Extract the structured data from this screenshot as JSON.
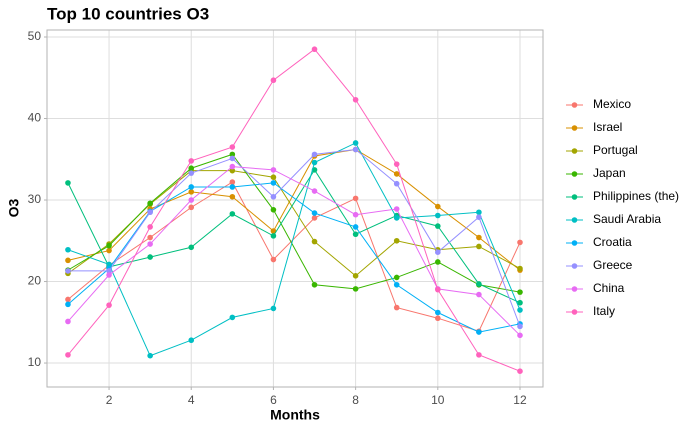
{
  "chart_data": {
    "type": "line",
    "title": "Top 10 countries O3",
    "x_label": "Months",
    "y_label": "O3",
    "x": [
      1,
      2,
      3,
      4,
      5,
      6,
      7,
      8,
      9,
      10,
      11,
      12
    ],
    "xlim": [
      0.49,
      12.56
    ],
    "xticks": [
      2,
      4,
      6,
      8,
      10,
      12
    ],
    "ylim": [
      7.06,
      50.86
    ],
    "yticks": [
      10,
      20,
      30,
      40,
      50
    ],
    "grid": true,
    "legend": "right",
    "series": [
      {
        "name": "Mexico",
        "color": "#F8766D",
        "values": [
          17.8,
          22,
          25.4,
          29.1,
          32.2,
          22.7,
          27.8,
          30.2,
          16.8,
          15.5,
          13.9,
          24.8
        ]
      },
      {
        "name": "Israel",
        "color": "#D89000",
        "values": [
          22.6,
          23.8,
          28.9,
          31,
          30.4,
          26.2,
          35.4,
          36.2,
          33.2,
          29.2,
          25.4,
          21.4
        ]
      },
      {
        "name": "Portugal",
        "color": "#A3A500",
        "values": [
          21,
          24.6,
          29.5,
          33.6,
          33.6,
          32.8,
          24.9,
          20.7,
          25,
          23.9,
          24.3,
          21.6
        ]
      },
      {
        "name": "Japan",
        "color": "#39B600",
        "values": [
          21.4,
          24.4,
          29.6,
          33.9,
          35.6,
          28.8,
          19.6,
          19.1,
          20.5,
          22.4,
          19.6,
          18.7
        ]
      },
      {
        "name": "Philippines (the)",
        "color": "#00BF7D",
        "values": [
          32.1,
          21.8,
          23,
          24.2,
          28.3,
          25.6,
          33.7,
          25.8,
          28.1,
          26.8,
          19.7,
          17.4
        ]
      },
      {
        "name": "Saudi Arabia",
        "color": "#00BFC4",
        "values": [
          23.9,
          22.1,
          10.9,
          12.8,
          15.6,
          16.7,
          34.6,
          37,
          27.8,
          28.1,
          28.5,
          16.5
        ]
      },
      {
        "name": "Croatia",
        "color": "#00B0F6",
        "values": [
          17.2,
          21.6,
          28.6,
          31.6,
          31.6,
          32.1,
          28.4,
          26.7,
          19.6,
          16.2,
          13.8,
          14.8
        ]
      },
      {
        "name": "Greece",
        "color": "#9590FF",
        "values": [
          21.3,
          21.3,
          28.5,
          33.3,
          35.1,
          30.4,
          35.6,
          36.2,
          32,
          23.6,
          27.9,
          14.5
        ]
      },
      {
        "name": "China",
        "color": "#E76BF3",
        "values": [
          15.1,
          20.8,
          24.6,
          30,
          34.1,
          33.7,
          31.1,
          28.2,
          28.9,
          19.1,
          18.4,
          13.4
        ]
      },
      {
        "name": "Italy",
        "color": "#FF62BC",
        "values": [
          11,
          17.1,
          26.7,
          34.8,
          36.5,
          44.7,
          48.5,
          42.3,
          34.4,
          19,
          11,
          9
        ]
      }
    ]
  }
}
